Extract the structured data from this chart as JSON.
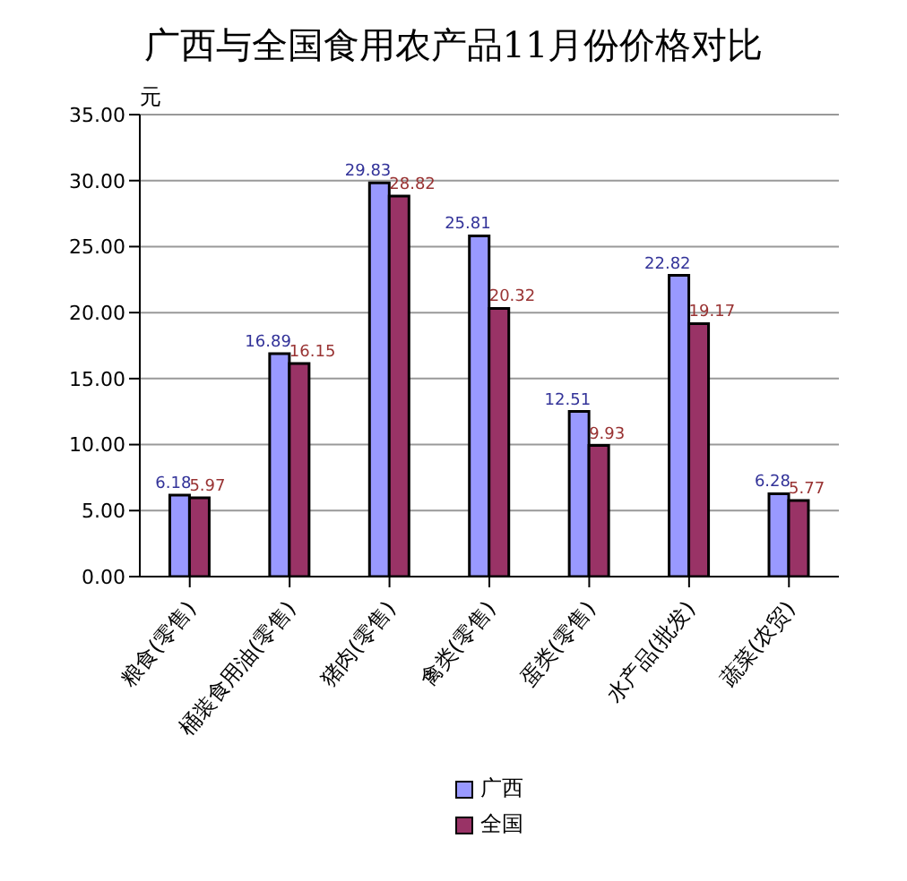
{
  "chart_data": {
    "type": "bar",
    "title": "广西与全国食用农产品11月份价格对比",
    "ylabel": "元",
    "categories": [
      "粮食(零售)",
      "桶装食用油(零售)",
      "猪肉(零售)",
      "禽类(零售)",
      "蛋类(零售)",
      "水产品(批发)",
      "蔬菜(农贸)"
    ],
    "series": [
      {
        "name": "广西",
        "color": "#9999ff",
        "values": [
          6.18,
          16.89,
          29.83,
          25.81,
          12.51,
          22.82,
          6.28
        ]
      },
      {
        "name": "全国",
        "color": "#993366",
        "values": [
          5.97,
          16.15,
          28.82,
          20.32,
          9.93,
          19.17,
          5.77
        ]
      }
    ],
    "ylim": [
      0,
      35
    ],
    "yticks": [
      {
        "value": 0,
        "label": "0.00"
      },
      {
        "value": 5,
        "label": "5.00"
      },
      {
        "value": 10,
        "label": "10.00"
      },
      {
        "value": 15,
        "label": "15.00"
      },
      {
        "value": 20,
        "label": "20.00"
      },
      {
        "value": 25,
        "label": "25.00"
      },
      {
        "value": 30,
        "label": "30.00"
      },
      {
        "value": 35,
        "label": "35.00"
      }
    ],
    "grid": "y",
    "legend": "bottom",
    "data_labels": true
  }
}
